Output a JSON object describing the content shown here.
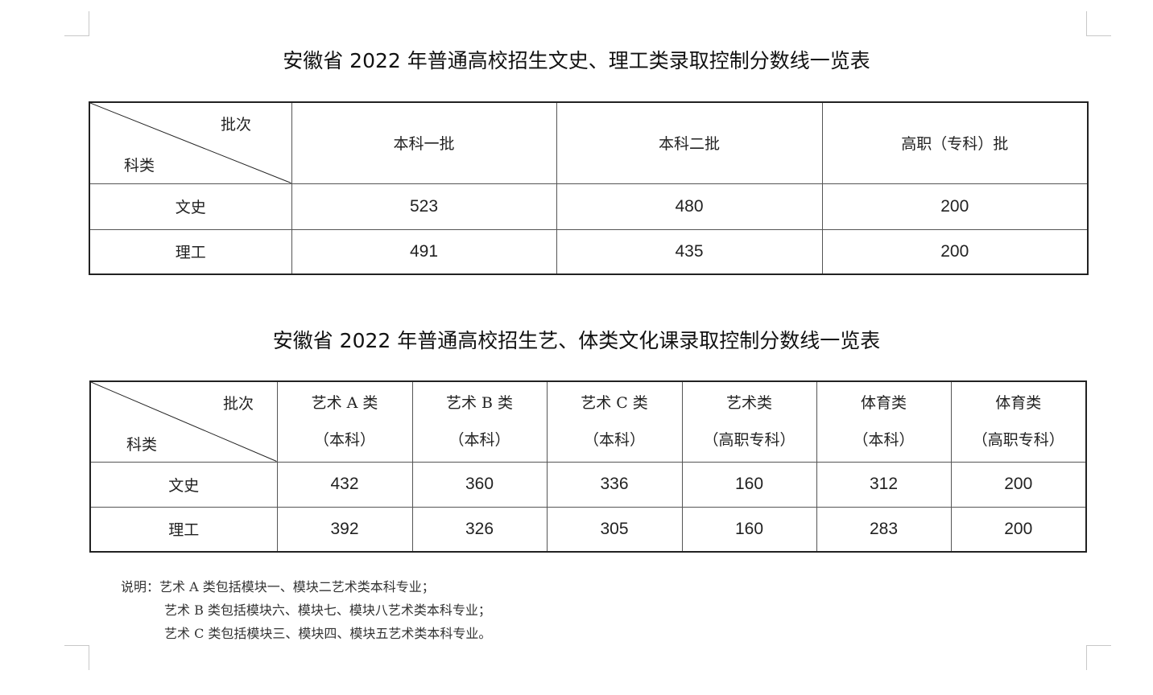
{
  "table1": {
    "title": "安徽省 2022 年普通高校招生文史、理工类录取控制分数线一览表",
    "corner_top": "批次",
    "corner_bottom": "科类",
    "columns": [
      "本科一批",
      "本科二批",
      "高职（专科）批"
    ],
    "rows": [
      {
        "label": "文史",
        "values": [
          "523",
          "480",
          "200"
        ]
      },
      {
        "label": "理工",
        "values": [
          "491",
          "435",
          "200"
        ]
      }
    ]
  },
  "table2": {
    "title": "安徽省 2022 年普通高校招生艺、体类文化课录取控制分数线一览表",
    "corner_top": "批次",
    "corner_bottom": "科类",
    "columns": [
      {
        "line1": "艺术 A 类",
        "line2": "（本科）"
      },
      {
        "line1": "艺术 B 类",
        "line2": "（本科）"
      },
      {
        "line1": "艺术 C 类",
        "line2": "（本科）"
      },
      {
        "line1": "艺术类",
        "line2": "（高职专科）"
      },
      {
        "line1": "体育类",
        "line2": "（本科）"
      },
      {
        "line1": "体育类",
        "line2": "（高职专科）"
      }
    ],
    "rows": [
      {
        "label": "文史",
        "values": [
          "432",
          "360",
          "336",
          "160",
          "312",
          "200"
        ]
      },
      {
        "label": "理工",
        "values": [
          "392",
          "326",
          "305",
          "160",
          "283",
          "200"
        ]
      }
    ]
  },
  "notes": [
    "说明：艺术 A 类包括模块一、模块二艺术类本科专业；",
    "艺术 B 类包括模块六、模块七、模块八艺术类本科专业；",
    "艺术 C 类包括模块三、模块四、模块五艺术类本科专业。"
  ]
}
